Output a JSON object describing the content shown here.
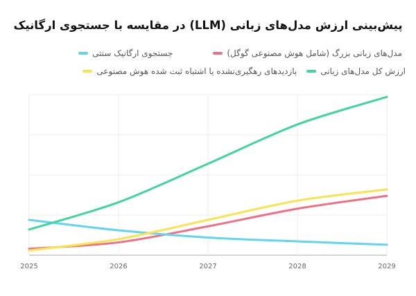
{
  "chart_data": {
    "type": "line",
    "title": "پیش‌بینی ارزش مدل‌های زبانی (LLM) در مقایسه با جستجوی ارگانیک",
    "xlabel": "",
    "ylabel": "",
    "x": [
      "2025",
      "2026",
      "2027",
      "2028",
      "2029"
    ],
    "ylim": [
      0,
      100
    ],
    "y_ticks_shown": false,
    "grid": true,
    "legend_placement": "top",
    "smooth": true,
    "series": [
      {
        "name": "مدل‌های زبانی بزرگ (شامل هوش مصنوعی گوگل)",
        "color": "#ef6f86",
        "values": [
          4,
          8,
          18,
          29,
          37
        ]
      },
      {
        "name": "جستجوی ارگانیک سنتی",
        "color": "#62d4f2",
        "values": [
          22,
          15.5,
          11,
          8.6,
          6.5
        ]
      },
      {
        "name": "ارزش کل مدل‌های زبانی",
        "color": "#40d69b",
        "values": [
          16,
          33,
          57,
          81.5,
          98.7
        ]
      },
      {
        "name": "بازدیدهای رهگیری‌نشده یا اشتباه ثبت شده هوش مصنوعی",
        "color": "#f8e44f",
        "values": [
          3,
          10,
          22,
          34,
          41
        ]
      }
    ]
  }
}
